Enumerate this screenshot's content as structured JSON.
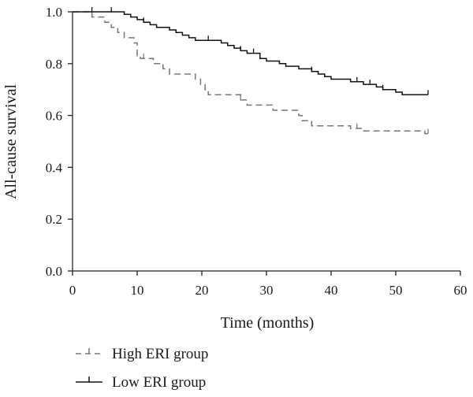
{
  "chart_data": {
    "type": "line",
    "subtype": "kaplan-meier",
    "xlabel": "Time (months)",
    "ylabel": "All-cause survival",
    "xlim": [
      0,
      60
    ],
    "ylim": [
      0,
      1
    ],
    "x_ticks": [
      "0",
      "10",
      "20",
      "30",
      "40",
      "50",
      "60"
    ],
    "y_ticks": [
      "0.0",
      "0.2",
      "0.4",
      "0.6",
      "0.8",
      "1.0"
    ],
    "grid": false,
    "legend_position": "bottom-left",
    "series": [
      {
        "name": "High ERI group",
        "color": "#777777",
        "line_style": "dashed",
        "steps": [
          [
            0,
            1.0
          ],
          [
            3,
            0.98
          ],
          [
            5,
            0.96
          ],
          [
            6,
            0.94
          ],
          [
            7,
            0.92
          ],
          [
            8,
            0.9
          ],
          [
            9.5,
            0.88
          ],
          [
            10,
            0.83
          ],
          [
            10.5,
            0.82
          ],
          [
            12.5,
            0.8
          ],
          [
            14,
            0.78
          ],
          [
            15,
            0.76
          ],
          [
            19,
            0.74
          ],
          [
            19.8,
            0.72
          ],
          [
            20.5,
            0.7
          ],
          [
            21,
            0.68
          ],
          [
            26,
            0.66
          ],
          [
            27,
            0.64
          ],
          [
            31,
            0.62
          ],
          [
            35,
            0.6
          ],
          [
            35.5,
            0.58
          ],
          [
            37,
            0.56
          ],
          [
            43,
            0.55
          ],
          [
            45,
            0.54
          ],
          [
            54.5,
            0.53
          ]
        ],
        "end_x": 55,
        "censor_x": [
          3,
          11,
          14,
          26,
          37,
          44,
          55
        ]
      },
      {
        "name": "Low ERI group",
        "color": "#111111",
        "line_style": "solid",
        "steps": [
          [
            0,
            1.0
          ],
          [
            8,
            0.99
          ],
          [
            9,
            0.98
          ],
          [
            10,
            0.97
          ],
          [
            11,
            0.96
          ],
          [
            12,
            0.95
          ],
          [
            13,
            0.94
          ],
          [
            15,
            0.93
          ],
          [
            16,
            0.92
          ],
          [
            17,
            0.91
          ],
          [
            18,
            0.9
          ],
          [
            19,
            0.89
          ],
          [
            23,
            0.88
          ],
          [
            24,
            0.87
          ],
          [
            25,
            0.86
          ],
          [
            26,
            0.85
          ],
          [
            27,
            0.84
          ],
          [
            29,
            0.82
          ],
          [
            30,
            0.81
          ],
          [
            32,
            0.8
          ],
          [
            33,
            0.79
          ],
          [
            35,
            0.78
          ],
          [
            37,
            0.77
          ],
          [
            38,
            0.76
          ],
          [
            39,
            0.75
          ],
          [
            40,
            0.74
          ],
          [
            43,
            0.73
          ],
          [
            45,
            0.72
          ],
          [
            47,
            0.71
          ],
          [
            48,
            0.7
          ],
          [
            50,
            0.69
          ],
          [
            51,
            0.68
          ]
        ],
        "end_x": 55,
        "censor_x": [
          3,
          6,
          11,
          21,
          26,
          28,
          37,
          44,
          46,
          48,
          55
        ]
      }
    ]
  }
}
